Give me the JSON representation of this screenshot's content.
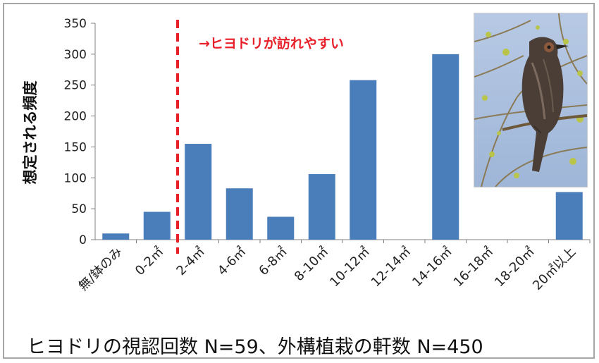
{
  "chart_data": {
    "type": "bar",
    "ylabel": "想定される頻度",
    "ylim": [
      0,
      350
    ],
    "yticks": [
      0,
      50,
      100,
      150,
      200,
      250,
      300,
      350
    ],
    "categories": [
      "無/鉢のみ",
      "0-2㎡",
      "2-4㎡",
      "4-6㎡",
      "6-8㎡",
      "8-10㎡",
      "10-12㎡",
      "12-14㎡",
      "14-16㎡",
      "16-18㎡",
      "18-20㎡",
      "20㎡以上"
    ],
    "values": [
      10,
      45,
      155,
      83,
      37,
      106,
      258,
      0,
      300,
      0,
      0,
      77
    ],
    "bar_color": "#4a7ebb",
    "threshold_after_category": "0-2㎡",
    "threshold_color": "#e8202a",
    "annotation": "→ヒヨドリが訪れやすい",
    "grid": false
  },
  "photo": {
    "subject": "bulbul-bird-photo"
  },
  "caption": "ヒヨドリの視認回数 N=59、外構植栽の軒数 N=450"
}
